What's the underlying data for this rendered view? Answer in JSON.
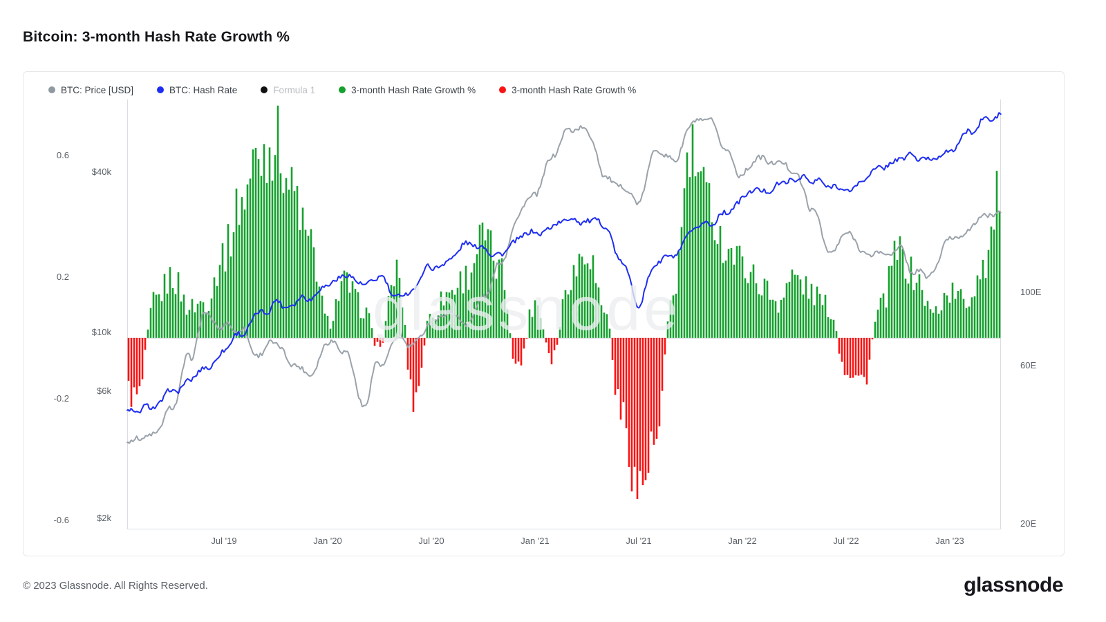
{
  "page": {
    "title": "Bitcoin: 3-month Hash Rate Growth %",
    "footer": "© 2023 Glassnode. All Rights Reserved.",
    "brand": "glassnode",
    "watermark": "glassnode"
  },
  "legend": [
    {
      "label": "BTC: Price [USD]",
      "color": "#8f99a1",
      "muted": false
    },
    {
      "label": "BTC: Hash Rate",
      "color": "#1d2df2",
      "muted": false
    },
    {
      "label": "Formula 1",
      "color": "#111111",
      "muted": true
    },
    {
      "label": "3-month Hash Rate Growth %",
      "color": "#16a02e",
      "muted": false
    },
    {
      "label": "3-month Hash Rate Growth %",
      "color": "#f81414",
      "muted": false
    }
  ],
  "chart_data": {
    "type": "composite",
    "title": "Bitcoin: 3-month Hash Rate Growth %",
    "x_unit": "months, monthly anchors starting 2019-01, ending 2023-04",
    "x_domain": [
      0.4,
      50.96
    ],
    "x_ticks": [
      {
        "label": "Jul '19",
        "m": 6
      },
      {
        "label": "Jan '20",
        "m": 12
      },
      {
        "label": "Jul '20",
        "m": 18
      },
      {
        "label": "Jan '21",
        "m": 24
      },
      {
        "label": "Jul '21",
        "m": 30
      },
      {
        "label": "Jan '22",
        "m": 36
      },
      {
        "label": "Jul '22",
        "m": 42
      },
      {
        "label": "Jan '23",
        "m": 48
      }
    ],
    "axes": {
      "growth": {
        "side": "left",
        "range": [
          -0.63,
          0.784
        ],
        "tick_values": [
          0.6,
          0.2,
          -0.2,
          -0.6
        ],
        "tick_labels": [
          "0.6",
          "0.2",
          "-0.2",
          "-0.6"
        ]
      },
      "price_usd_log": {
        "side": "left",
        "log_range": [
          3.26,
          4.875
        ],
        "tick_values": [
          40000,
          10000,
          6000,
          2000
        ],
        "tick_labels": [
          "$40k",
          "$10k",
          "$6k",
          "$2k"
        ]
      },
      "hashrate_log": {
        "side": "right",
        "log_range": [
          1.285,
          2.581
        ],
        "tick_values": [
          100,
          60,
          20
        ],
        "tick_labels": [
          "100E",
          "60E",
          "20E"
        ]
      }
    },
    "series": [
      {
        "name": "BTC: Price [USD]",
        "type": "line",
        "scale": "price_usd_log",
        "color": "#9aa2aa",
        "monthly_values": [
          3600,
          3850,
          4000,
          5200,
          8000,
          11800,
          10500,
          10200,
          8300,
          9200,
          7500,
          7200,
          9300,
          8800,
          5300,
          7600,
          9400,
          9100,
          11000,
          11700,
          10800,
          13500,
          18500,
          27000,
          34000,
          46000,
          57000,
          58000,
          38000,
          34000,
          31500,
          47000,
          43500,
          61000,
          63500,
          47000,
          38500,
          43500,
          45500,
          38500,
          30000,
          20000,
          23000,
          20000,
          19500,
          20500,
          16800,
          16800,
          23000,
          23500,
          28000,
          29500
        ]
      },
      {
        "name": "BTC: Hash Rate",
        "type": "line",
        "scale": "hashrate_log",
        "color": "#1d2df2",
        "monthly_values": [
          42,
          44,
          46,
          50,
          54,
          60,
          68,
          76,
          86,
          92,
          93,
          97,
          106,
          112,
          105,
          112,
          98,
          104,
          120,
          126,
          138,
          136,
          128,
          142,
          152,
          156,
          163,
          168,
          160,
          120,
          92,
          118,
          132,
          148,
          162,
          172,
          192,
          200,
          208,
          220,
          218,
          212,
          203,
          218,
          238,
          258,
          256,
          252,
          268,
          300,
          330,
          348
        ]
      },
      {
        "name": "3-month Hash Rate Growth %",
        "type": "bars",
        "scale": "growth",
        "color_positive": "#16a02e",
        "color_negative": "#f81414",
        "monthly_values": [
          -0.15,
          -0.2,
          0.12,
          0.2,
          0.1,
          0.12,
          0.28,
          0.45,
          0.6,
          0.65,
          0.48,
          0.3,
          0.05,
          0.18,
          0.1,
          -0.03,
          0.22,
          -0.2,
          0.08,
          0.15,
          0.2,
          0.33,
          0.22,
          -0.1,
          0.12,
          -0.06,
          0.2,
          0.3,
          0.1,
          -0.25,
          -0.5,
          -0.35,
          0.15,
          0.6,
          0.45,
          0.3,
          0.25,
          0.18,
          0.12,
          0.2,
          0.15,
          0.1,
          -0.1,
          -0.14,
          0.1,
          0.28,
          0.2,
          0.08,
          0.15,
          0.12,
          0.25,
          0.5
        ]
      }
    ],
    "legend_position": "top-left",
    "grid": false
  }
}
